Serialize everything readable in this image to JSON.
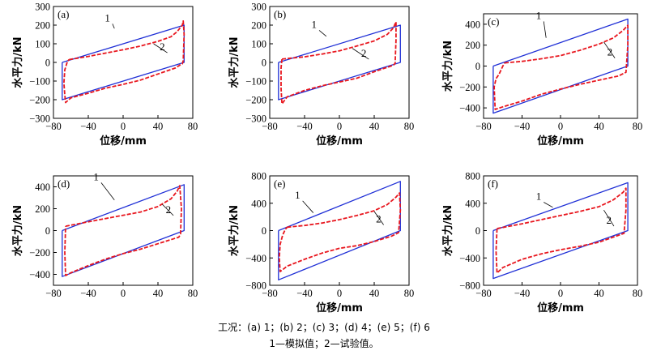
{
  "figure": {
    "caption_conditions": "工况：(a) 1；(b) 2；(c) 3；(d) 4；(e) 5；(f) 6",
    "caption_legend": "1—模拟值；2—试验值。",
    "colors": {
      "simulated": "#1f2fd6",
      "test": "#e8161e",
      "axes": "#000000"
    }
  },
  "chart_data": [
    {
      "type": "line",
      "panel_label": "(a)",
      "xlabel": "位移/mm",
      "ylabel": "水平力/kN",
      "xlim": [
        -80,
        80
      ],
      "ylim": [
        -300,
        300
      ],
      "xticks": [
        -80,
        -40,
        0,
        40,
        80
      ],
      "yticks": [
        -300,
        -200,
        -100,
        0,
        100,
        200,
        300
      ],
      "xtick_labels": [
        "−80",
        "−40",
        "0",
        "40",
        "80"
      ],
      "ytick_labels": [
        "−300",
        "−200",
        "−100",
        "0",
        "100",
        "200",
        "300"
      ],
      "annotations": [
        "1",
        "2"
      ],
      "series": [
        {
          "name": "1",
          "style": "solid",
          "x": [
            -70,
            70,
            70,
            -70,
            -70
          ],
          "y": [
            0,
            200,
            0,
            -200,
            0
          ]
        },
        {
          "name": "2",
          "style": "dashed",
          "x": [
            -62,
            -40,
            -20,
            0,
            20,
            40,
            55,
            62,
            68,
            69,
            70,
            69,
            68,
            66,
            60,
            40,
            20,
            0,
            -20,
            -40,
            -60,
            -66,
            -67,
            -68,
            -67,
            -64,
            -62
          ],
          "y": [
            15,
            32,
            50,
            68,
            88,
            113,
            138,
            165,
            200,
            222,
            150,
            10,
            -8,
            -12,
            -30,
            -62,
            -95,
            -118,
            -138,
            -165,
            -190,
            -215,
            -175,
            -110,
            -40,
            5,
            15
          ]
        }
      ]
    },
    {
      "type": "line",
      "panel_label": "(b)",
      "xlabel": "位移/mm",
      "ylabel": "水平力/kN",
      "xlim": [
        -80,
        80
      ],
      "ylim": [
        -300,
        300
      ],
      "xticks": [
        -80,
        -40,
        0,
        40,
        80
      ],
      "yticks": [
        -300,
        -200,
        -100,
        0,
        100,
        200,
        300
      ],
      "xtick_labels": [
        "−80",
        "−40",
        "0",
        "40",
        "80"
      ],
      "ytick_labels": [
        "−300",
        "−200",
        "−100",
        "0",
        "100",
        "200",
        "300"
      ],
      "annotations": [
        "1",
        "2"
      ],
      "series": [
        {
          "name": "1",
          "style": "solid",
          "x": [
            -70,
            70,
            70,
            -70,
            -70
          ],
          "y": [
            0,
            200,
            0,
            -200,
            0
          ]
        },
        {
          "name": "2",
          "style": "dashed",
          "x": [
            -66,
            -40,
            -20,
            0,
            20,
            40,
            55,
            62,
            65,
            65,
            64,
            62,
            40,
            20,
            0,
            -20,
            -40,
            -60,
            -66,
            -67,
            -67,
            -66
          ],
          "y": [
            18,
            30,
            45,
            62,
            88,
            115,
            150,
            185,
            218,
            120,
            -5,
            -15,
            -50,
            -85,
            -105,
            -125,
            -150,
            -185,
            -222,
            -140,
            -30,
            18
          ]
        }
      ]
    },
    {
      "type": "line",
      "panel_label": "(c)",
      "xlabel": "位移/mm",
      "ylabel": "水平力/kN",
      "xlim": [
        -80,
        80
      ],
      "ylim": [
        -500,
        500
      ],
      "xticks": [
        -80,
        -40,
        0,
        40,
        80
      ],
      "yticks": [
        -400,
        -200,
        0,
        200,
        400
      ],
      "xtick_labels": [
        "−80",
        "−40",
        "0",
        "40",
        "80"
      ],
      "ytick_labels": [
        "−400",
        "−200",
        "0",
        "200",
        "400"
      ],
      "annotations": [
        "1",
        "2"
      ],
      "series": [
        {
          "name": "1",
          "style": "solid",
          "x": [
            -70,
            70,
            70,
            -70,
            -70
          ],
          "y": [
            0,
            450,
            0,
            -450,
            0
          ]
        },
        {
          "name": "2",
          "style": "dashed",
          "x": [
            -58,
            -40,
            -20,
            0,
            20,
            40,
            55,
            65,
            69,
            70,
            70,
            68,
            60,
            40,
            20,
            0,
            -20,
            -40,
            -60,
            -68,
            -69,
            -67,
            -64,
            -60,
            -58
          ],
          "y": [
            30,
            45,
            70,
            100,
            150,
            210,
            270,
            340,
            380,
            390,
            200,
            -60,
            -95,
            -135,
            -175,
            -220,
            -270,
            -335,
            -390,
            -415,
            -200,
            -120,
            -80,
            0,
            30
          ]
        }
      ]
    },
    {
      "type": "line",
      "panel_label": "(d)",
      "xlabel": "",
      "ylabel": "水平力/kN",
      "xlim": [
        -80,
        80
      ],
      "ylim": [
        -500,
        500
      ],
      "xticks": [
        -80,
        -40,
        0,
        40,
        80
      ],
      "yticks": [
        -400,
        -200,
        0,
        200,
        400
      ],
      "xtick_labels": [
        "−80",
        "−40",
        "0",
        "40",
        "80"
      ],
      "ytick_labels": [
        "−400",
        "−200",
        "0",
        "200",
        "400"
      ],
      "annotations": [
        "1",
        "2"
      ],
      "series": [
        {
          "name": "1",
          "style": "solid",
          "x": [
            -70,
            70,
            70,
            -70,
            -70
          ],
          "y": [
            0,
            420,
            0,
            -420,
            0
          ]
        },
        {
          "name": "2",
          "style": "dashed",
          "x": [
            -66,
            -40,
            -20,
            0,
            20,
            40,
            55,
            62,
            65,
            67,
            66,
            64,
            40,
            20,
            0,
            -20,
            -40,
            -60,
            -66,
            -67,
            -66
          ],
          "y": [
            40,
            80,
            110,
            140,
            170,
            220,
            290,
            360,
            410,
            200,
            -30,
            -60,
            -120,
            -170,
            -210,
            -260,
            -320,
            -385,
            -410,
            -200,
            40
          ]
        }
      ]
    },
    {
      "type": "line",
      "panel_label": "(e)",
      "xlabel": "位移/mm",
      "ylabel": "水平力/kN",
      "xlim": [
        -80,
        80
      ],
      "ylim": [
        -800,
        800
      ],
      "xticks": [
        -80,
        -40,
        0,
        40,
        80
      ],
      "yticks": [
        -800,
        -400,
        0,
        400,
        800
      ],
      "xtick_labels": [
        "−80",
        "−40",
        "0",
        "40",
        "80"
      ],
      "ytick_labels": [
        "−800",
        "−400",
        "0",
        "400",
        "800"
      ],
      "annotations": [
        "1",
        "2"
      ],
      "series": [
        {
          "name": "1",
          "style": "solid",
          "x": [
            -70,
            70,
            70,
            -70,
            -70
          ],
          "y": [
            0,
            720,
            0,
            -720,
            0
          ]
        },
        {
          "name": "2",
          "style": "dashed",
          "x": [
            -60,
            -40,
            -20,
            0,
            20,
            40,
            55,
            65,
            69,
            70,
            68,
            60,
            40,
            20,
            0,
            -20,
            -40,
            -60,
            -68,
            -69,
            -68,
            -65,
            -62,
            -60
          ],
          "y": [
            50,
            75,
            110,
            160,
            220,
            290,
            380,
            490,
            550,
            300,
            -30,
            -80,
            -160,
            -220,
            -260,
            -330,
            -420,
            -520,
            -600,
            -400,
            -200,
            -60,
            20,
            50
          ]
        }
      ]
    },
    {
      "type": "line",
      "panel_label": "(f)",
      "xlabel": "位移/mm",
      "ylabel": "水平力/kN",
      "xlim": [
        -80,
        80
      ],
      "ylim": [
        -800,
        800
      ],
      "xticks": [
        -80,
        -40,
        0,
        40,
        80
      ],
      "yticks": [
        -800,
        -400,
        0,
        400,
        800
      ],
      "xtick_labels": [
        "−80",
        "−40",
        "0",
        "40",
        "80"
      ],
      "ytick_labels": [
        "−800",
        "−400",
        "0",
        "400",
        "800"
      ],
      "annotations": [
        "1",
        "2"
      ],
      "series": [
        {
          "name": "1",
          "style": "solid",
          "x": [
            -70,
            70,
            70,
            -70,
            -70
          ],
          "y": [
            0,
            700,
            0,
            -700,
            0
          ]
        },
        {
          "name": "2",
          "style": "dashed",
          "x": [
            -66,
            -40,
            -20,
            0,
            20,
            40,
            55,
            65,
            68,
            68,
            66,
            40,
            20,
            0,
            -20,
            -40,
            -60,
            -66,
            -67,
            -66
          ],
          "y": [
            30,
            100,
            160,
            220,
            280,
            350,
            450,
            560,
            620,
            300,
            -40,
            -170,
            -230,
            -280,
            -340,
            -420,
            -540,
            -620,
            -300,
            30
          ]
        }
      ]
    }
  ]
}
